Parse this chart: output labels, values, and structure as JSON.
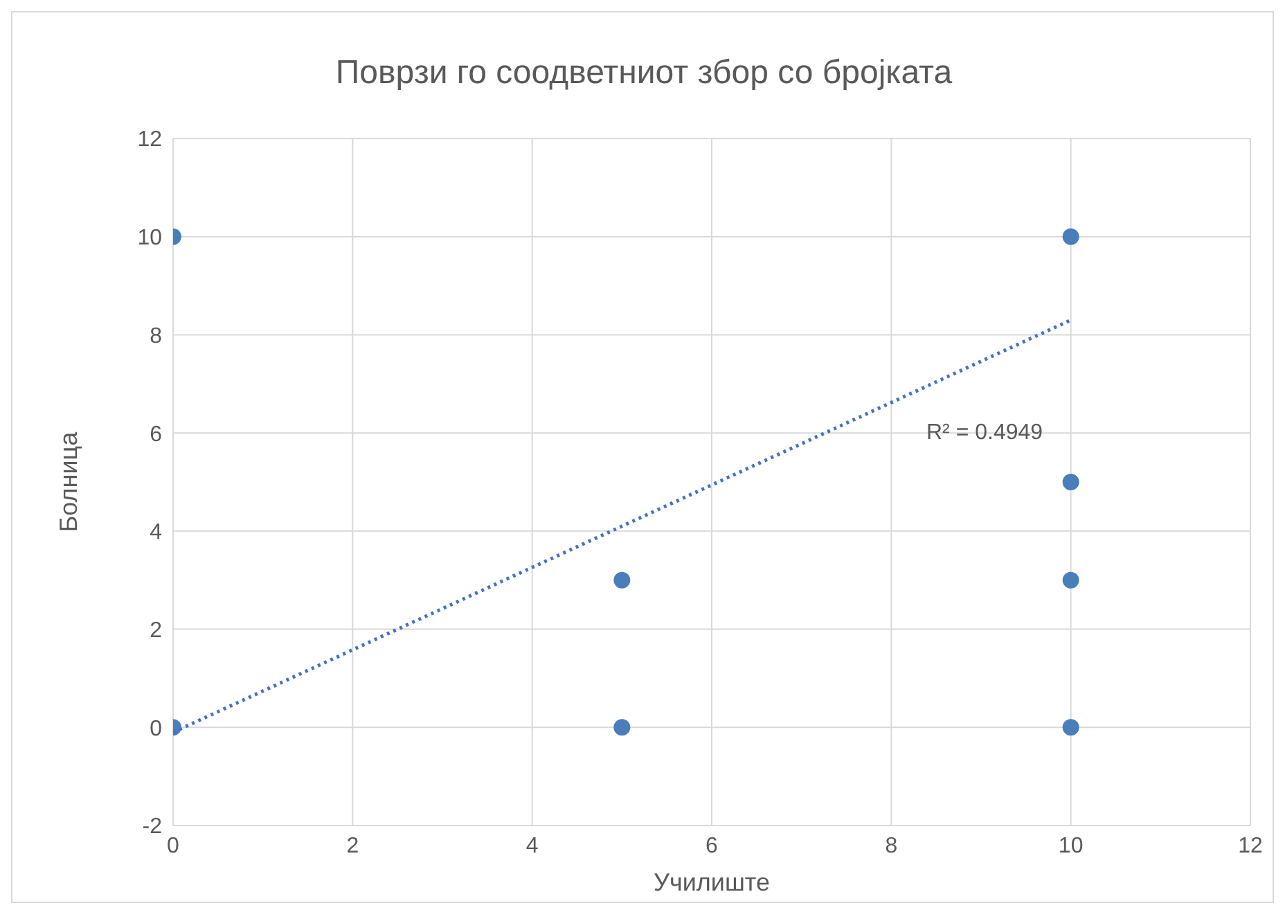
{
  "chart_data": {
    "type": "scatter",
    "title": "Поврзи го соодветниот збор со бројката",
    "xlabel": "Училиште",
    "ylabel": "Болница",
    "series": [
      {
        "color": "#4a7ebb",
        "x": [
          0,
          0,
          5,
          5,
          10,
          10,
          10,
          10
        ],
        "values": [
          10,
          0,
          3,
          0,
          10,
          5,
          3,
          0
        ],
        "marker": "circle"
      },
      {
        "type": "line",
        "color": "#4472c4",
        "x": [
          0,
          10
        ],
        "values": [
          -0.1,
          8.3
        ],
        "line_style": "dotted",
        "marker": "none"
      }
    ],
    "annotations": [
      "R² = 0.4949"
    ],
    "xlim": [
      0,
      12
    ],
    "xticks": [
      0,
      2,
      4,
      6,
      8,
      10,
      12
    ],
    "ylim": [
      -2,
      12
    ],
    "yticks": [
      -2,
      0,
      2,
      4,
      6,
      8,
      10,
      12
    ],
    "grid": true
  }
}
